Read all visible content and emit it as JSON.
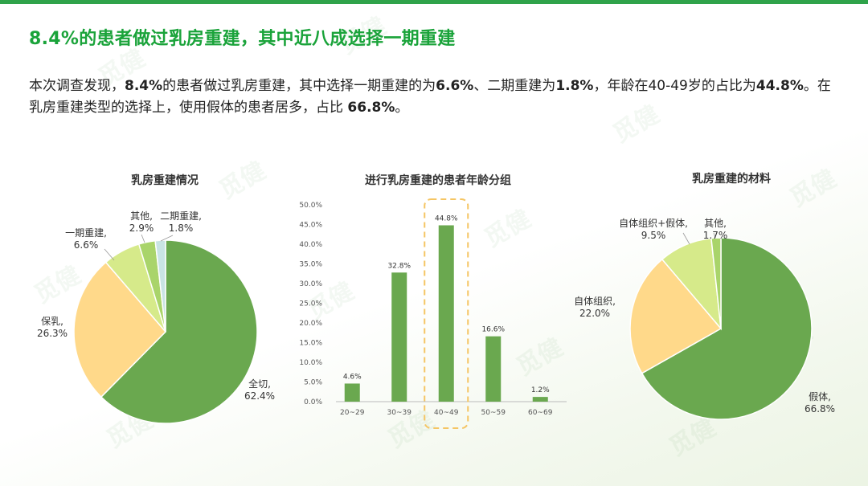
{
  "page": {
    "title": "8.4%的患者做过乳房重建，其中近八成选择一期重建",
    "summary": {
      "p1": "本次调查发现，",
      "b1": "8.4%",
      "p2": "的患者做过乳房重建，其中选择一期重建的为",
      "b2": "6.6%",
      "p3": "、二期重建为",
      "b3": "1.8%",
      "p4": "，年龄在40-49岁的占比为",
      "b4": "44.8%",
      "p5": "。在乳房重建类型的选择上，使用假体的患者居多，占比 ",
      "b5": "66.8%",
      "p6": "。"
    },
    "watermark": "觅健"
  },
  "chart_data": [
    {
      "type": "pie",
      "title": "乳房重建情况",
      "slices": [
        {
          "name": "全切",
          "value": 62.4,
          "label": "62.4%",
          "color": "#6aa84f"
        },
        {
          "name": "保乳",
          "value": 26.3,
          "label": "26.3%",
          "color": "#ffd98a"
        },
        {
          "name": "一期重建",
          "value": 6.6,
          "label": "6.6%",
          "color": "#d6ea8a"
        },
        {
          "name": "其他",
          "value": 2.9,
          "label": "2.9%",
          "color": "#a9d46a"
        },
        {
          "name": "二期重建",
          "value": 1.8,
          "label": "1.8%",
          "color": "#c9e4e4"
        }
      ]
    },
    {
      "type": "bar",
      "title": "进行乳房重建的患者年龄分组",
      "categories": [
        "20~29",
        "30~39",
        "40~49",
        "50~59",
        "60~69"
      ],
      "values": [
        4.6,
        32.8,
        44.8,
        16.6,
        1.2
      ],
      "value_labels": [
        "4.6%",
        "32.8%",
        "44.8%",
        "16.6%",
        "1.2%"
      ],
      "ylim": [
        0,
        50
      ],
      "yticks": [
        "0.0%",
        "5.0%",
        "10.0%",
        "15.0%",
        "20.0%",
        "25.0%",
        "30.0%",
        "35.0%",
        "40.0%",
        "45.0%",
        "50.0%"
      ],
      "color": "#6aa84f",
      "highlight": "40~49",
      "highlight_color": "#f5c563"
    },
    {
      "type": "pie",
      "title": "乳房重建的材料",
      "slices": [
        {
          "name": "假体",
          "value": 66.8,
          "label": "66.8%",
          "color": "#6aa84f"
        },
        {
          "name": "自体组织",
          "value": 22.0,
          "label": "22.0%",
          "color": "#ffd98a"
        },
        {
          "name": "自体组织+假体",
          "value": 9.5,
          "label": "9.5%",
          "color": "#d6ea8a"
        },
        {
          "name": "其他",
          "value": 1.7,
          "label": "1.7%",
          "color": "#a9d46a"
        }
      ]
    }
  ]
}
